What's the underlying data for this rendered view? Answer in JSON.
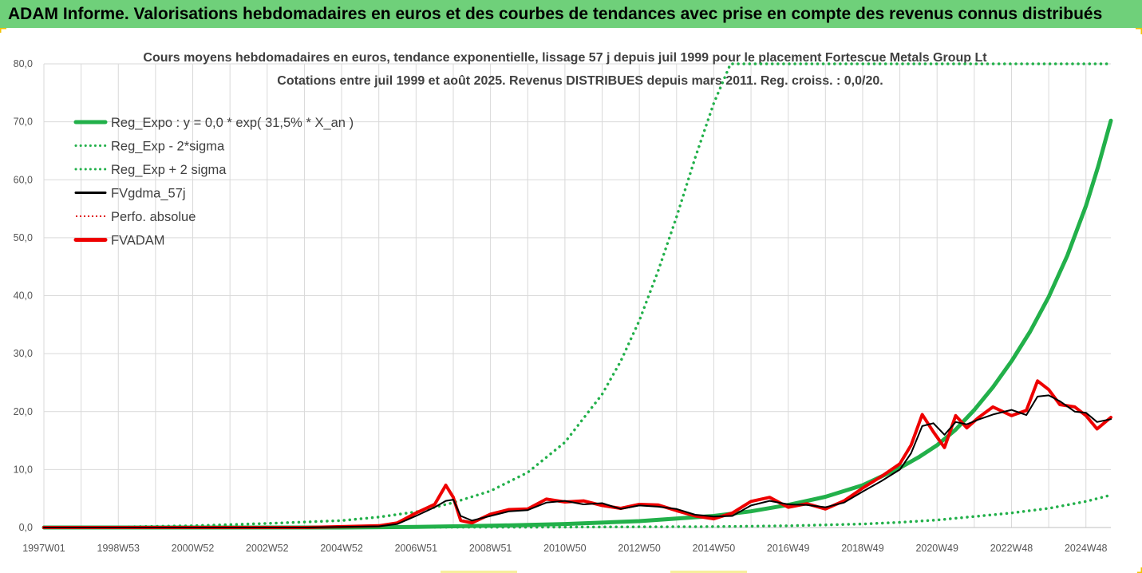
{
  "header": {
    "banner_text": "ADAM Informe. Valorisations hebdomadaires en euros et des courbes de tendances avec prise en compte des revenus connus distribués"
  },
  "colors": {
    "banner_bg": "#6fd07a",
    "reg_expo": "#22b04a",
    "sigma": "#22b04a",
    "fvgdma": "#000000",
    "perfo": "#e00000",
    "fvadam": "#ee0000",
    "grid": "#d9d9d9",
    "corner_accent": "#f2c200"
  },
  "chart_data": {
    "type": "line",
    "title_line1": "Cours moyens hebdomadaires en euros, tendance exponentielle, lissage 57 j depuis juil 1999 pour le placement Fortescue Metals Group Lt",
    "title_line2": "Cotations entre juil 1999 et août 2025. Revenus DISTRIBUES depuis mars 2011. Reg. croiss. : 0,0/20.",
    "xlabel": "",
    "ylabel": "",
    "ylim": [
      0,
      80
    ],
    "xlim": [
      1997.0,
      2025.67
    ],
    "grid": true,
    "legend_position": "top-left",
    "y_ticks": [
      "0,0",
      "10,0",
      "20,0",
      "30,0",
      "40,0",
      "50,0",
      "60,0",
      "70,0",
      "80,0"
    ],
    "x_ticks": [
      "1997W01",
      "1998W53",
      "2000W52",
      "2002W52",
      "2004W52",
      "2006W51",
      "2008W51",
      "2010W50",
      "2012W50",
      "2014W50",
      "2016W49",
      "2018W49",
      "2020W49",
      "2022W48",
      "2024W48"
    ],
    "x_tick_years": [
      1997.0,
      1999.0,
      2001.0,
      2003.0,
      2005.0,
      2007.0,
      2009.0,
      2011.0,
      2013.0,
      2015.0,
      2017.0,
      2019.0,
      2021.0,
      2023.0,
      2025.0
    ],
    "legend": [
      {
        "key": "reg_expo",
        "label": "Reg_Expo : y = 0,0 * exp( 31,5% *  X_an )",
        "style": "solid-thick",
        "color": "#22b04a"
      },
      {
        "key": "sigma_minus",
        "label": "Reg_Exp - 2*sigma",
        "style": "dotted",
        "color": "#22b04a"
      },
      {
        "key": "sigma_plus",
        "label": "Reg_Exp + 2 sigma",
        "style": "dotted",
        "color": "#22b04a"
      },
      {
        "key": "fvgdma",
        "label": "FVgdma_57j",
        "style": "solid",
        "color": "#000000"
      },
      {
        "key": "perfo",
        "label": "Perfo. absolue",
        "style": "dotted",
        "color": "#e00000"
      },
      {
        "key": "fvadam",
        "label": "FVADAM",
        "style": "solid-thick",
        "color": "#ee0000"
      }
    ],
    "series": [
      {
        "name": "Reg_Expo : y = 0,0 * exp( 31,5% *  X_an )",
        "x": [
          1997.0,
          2005.0,
          2007.0,
          2009.0,
          2011.0,
          2013.0,
          2015.0,
          2016.0,
          2017.0,
          2018.0,
          2019.0,
          2019.5,
          2020.0,
          2020.5,
          2021.0,
          2021.5,
          2022.0,
          2022.5,
          2023.0,
          2023.5,
          2024.0,
          2024.5,
          2025.0,
          2025.33,
          2025.67
        ],
        "values": [
          0.0,
          0.0,
          0.1,
          0.3,
          0.6,
          1.1,
          2.0,
          2.8,
          3.9,
          5.3,
          7.3,
          8.8,
          10.3,
          12.1,
          14.2,
          16.9,
          20.3,
          24.2,
          28.7,
          33.8,
          39.8,
          46.9,
          55.5,
          62.3,
          70.2
        ]
      },
      {
        "name": "Reg_Exp - 2*sigma",
        "x": [
          1997.0,
          2010.0,
          2015.0,
          2017.0,
          2019.0,
          2020.0,
          2021.0,
          2022.0,
          2023.0,
          2024.0,
          2025.0,
          2025.67
        ],
        "values": [
          0.0,
          0.05,
          0.15,
          0.3,
          0.6,
          0.9,
          1.3,
          1.9,
          2.5,
          3.3,
          4.5,
          5.6
        ]
      },
      {
        "name": "Reg_Exp + 2 sigma",
        "x": [
          1997.0,
          1999.0,
          2001.0,
          2003.0,
          2005.0,
          2006.0,
          2007.0,
          2008.0,
          2009.0,
          2010.0,
          2011.0,
          2012.0,
          2012.5,
          2013.0,
          2013.5,
          2014.0,
          2014.5,
          2015.0,
          2015.45,
          2015.6,
          2025.67
        ],
        "values": [
          0.0,
          0.1,
          0.3,
          0.7,
          1.2,
          1.8,
          2.7,
          4.3,
          6.3,
          9.5,
          14.7,
          23.0,
          28.7,
          35.7,
          44.2,
          53.6,
          63.8,
          73.2,
          80.0,
          80.0,
          80.0
        ]
      },
      {
        "name": "FVgdma_57j",
        "x": [
          1997.0,
          2004.0,
          2006.0,
          2006.5,
          2007.0,
          2007.5,
          2007.8,
          2008.0,
          2008.2,
          2008.5,
          2009.0,
          2009.5,
          2010.0,
          2010.5,
          2011.0,
          2011.5,
          2012.0,
          2012.5,
          2013.0,
          2013.5,
          2014.0,
          2014.5,
          2015.0,
          2015.5,
          2016.0,
          2016.5,
          2017.0,
          2017.5,
          2018.0,
          2018.5,
          2019.0,
          2019.5,
          2020.0,
          2020.3,
          2020.6,
          2020.9,
          2021.2,
          2021.5,
          2021.8,
          2022.1,
          2022.5,
          2023.0,
          2023.4,
          2023.7,
          2024.0,
          2024.3,
          2024.7,
          2025.0,
          2025.3,
          2025.67
        ],
        "values": [
          0.0,
          0.0,
          0.2,
          0.6,
          2.0,
          3.5,
          4.6,
          4.8,
          2.0,
          1.2,
          2.0,
          2.8,
          3.0,
          4.3,
          4.6,
          4.0,
          4.2,
          3.2,
          3.8,
          3.6,
          3.2,
          2.2,
          1.9,
          2.0,
          3.8,
          4.6,
          4.0,
          3.9,
          3.5,
          4.3,
          6.2,
          8.0,
          10.0,
          12.8,
          17.5,
          18.0,
          16.0,
          18.2,
          17.8,
          18.6,
          19.5,
          20.3,
          19.4,
          22.6,
          22.8,
          21.8,
          20.0,
          19.8,
          18.2,
          18.7
        ]
      },
      {
        "name": "FVADAM",
        "x": [
          1997.0,
          2004.0,
          2006.0,
          2006.5,
          2007.0,
          2007.5,
          2007.8,
          2008.0,
          2008.2,
          2008.5,
          2009.0,
          2009.5,
          2010.0,
          2010.5,
          2011.0,
          2011.5,
          2012.0,
          2012.5,
          2013.0,
          2013.5,
          2014.0,
          2014.5,
          2015.0,
          2015.5,
          2016.0,
          2016.5,
          2017.0,
          2017.5,
          2018.0,
          2018.5,
          2019.0,
          2019.5,
          2020.0,
          2020.3,
          2020.6,
          2020.9,
          2021.2,
          2021.5,
          2021.8,
          2022.1,
          2022.5,
          2023.0,
          2023.4,
          2023.7,
          2024.0,
          2024.3,
          2024.7,
          2025.0,
          2025.3,
          2025.67
        ],
        "values": [
          0.0,
          0.0,
          0.3,
          0.8,
          2.5,
          4.0,
          7.3,
          5.2,
          1.2,
          0.8,
          2.3,
          3.1,
          3.2,
          4.9,
          4.4,
          4.6,
          3.8,
          3.3,
          4.0,
          3.9,
          2.9,
          2.0,
          1.5,
          2.5,
          4.5,
          5.2,
          3.5,
          4.1,
          3.2,
          4.6,
          6.8,
          8.8,
          11.0,
          14.2,
          19.5,
          16.5,
          13.8,
          19.3,
          17.2,
          18.9,
          20.8,
          19.3,
          20.2,
          25.3,
          23.8,
          21.2,
          20.8,
          19.3,
          17.0,
          19.0
        ]
      }
    ]
  }
}
